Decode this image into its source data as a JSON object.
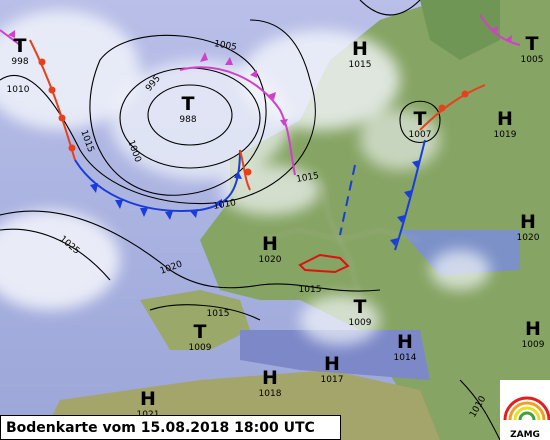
{
  "title": "Bodenkarte vom 15.08.2018 18:00 UTC",
  "logo": "ZAMG",
  "pressure_centers": [
    {
      "symbol": "T",
      "pressure": 998
    },
    {
      "symbol": "T",
      "pressure": 988
    },
    {
      "symbol": "H",
      "pressure": 1015
    },
    {
      "symbol": "T",
      "pressure": 1005
    },
    {
      "symbol": "T",
      "pressure": 1007
    },
    {
      "symbol": "H",
      "pressure": 1019
    },
    {
      "symbol": "H",
      "pressure": 1020
    },
    {
      "symbol": "H",
      "pressure": 1020
    },
    {
      "symbol": "T",
      "pressure": 1009
    },
    {
      "symbol": "T",
      "pressure": 1009
    },
    {
      "symbol": "H",
      "pressure": 1014
    },
    {
      "symbol": "H",
      "pressure": 1009
    },
    {
      "symbol": "H",
      "pressure": 1017
    },
    {
      "symbol": "H",
      "pressure": 1018
    },
    {
      "symbol": "H",
      "pressure": 1021
    }
  ],
  "isobar_labels": [
    1005,
    995,
    1010,
    1015,
    1000,
    1015,
    1010,
    1025,
    1020,
    1015,
    1015,
    1010
  ]
}
